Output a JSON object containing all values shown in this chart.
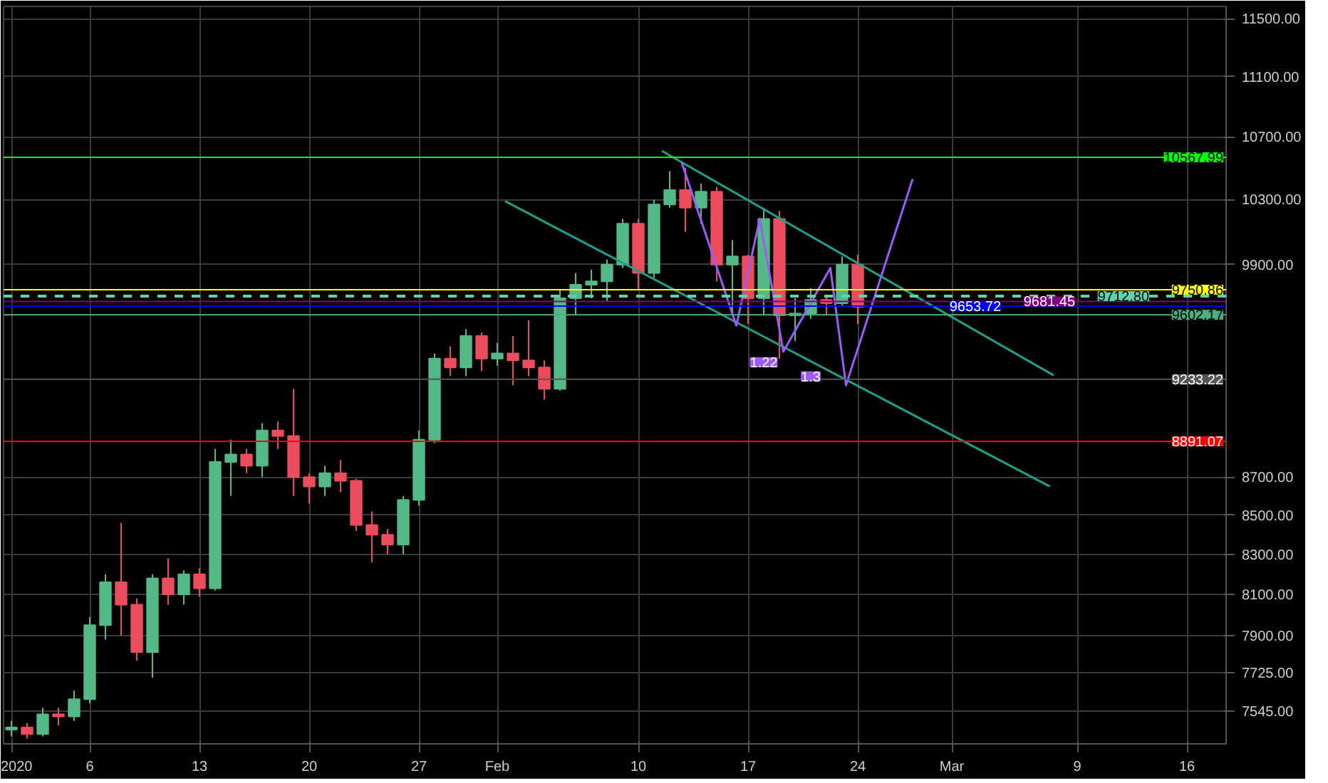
{
  "chart_data": {
    "type": "candlestick",
    "log": "y",
    "grid": true,
    "x": [
      "2020-01-01",
      "2020-01-02",
      "2020-01-03",
      "2020-01-04",
      "2020-01-05",
      "2020-01-06",
      "2020-01-07",
      "2020-01-08",
      "2020-01-09",
      "2020-01-10",
      "2020-01-11",
      "2020-01-12",
      "2020-01-13",
      "2020-01-14",
      "2020-01-15",
      "2020-01-16",
      "2020-01-17",
      "2020-01-18",
      "2020-01-19",
      "2020-01-20",
      "2020-01-21",
      "2020-01-22",
      "2020-01-23",
      "2020-01-24",
      "2020-01-25",
      "2020-01-26",
      "2020-01-27",
      "2020-01-28",
      "2020-01-29",
      "2020-01-30",
      "2020-01-31",
      "2020-02-01",
      "2020-02-02",
      "2020-02-03",
      "2020-02-04",
      "2020-02-05",
      "2020-02-06",
      "2020-02-07",
      "2020-02-08",
      "2020-02-09",
      "2020-02-10",
      "2020-02-11",
      "2020-02-12",
      "2020-02-13",
      "2020-02-14",
      "2020-02-15",
      "2020-02-16",
      "2020-02-17",
      "2020-02-18",
      "2020-02-19",
      "2020-02-20",
      "2020-02-21",
      "2020-02-22",
      "2020-02-23",
      "2020-02-24"
    ],
    "ohlc": [
      [
        7460,
        7500,
        7430,
        7470
      ],
      [
        7470,
        7490,
        7420,
        7440
      ],
      [
        7440,
        7560,
        7430,
        7530
      ],
      [
        7530,
        7560,
        7480,
        7520
      ],
      [
        7520,
        7640,
        7500,
        7600
      ],
      [
        7600,
        7990,
        7580,
        7950
      ],
      [
        7950,
        8200,
        7880,
        8160
      ],
      [
        8160,
        8460,
        7900,
        8050
      ],
      [
        8050,
        8080,
        7780,
        7820
      ],
      [
        7820,
        8200,
        7700,
        8180
      ],
      [
        8180,
        8280,
        8050,
        8100
      ],
      [
        8100,
        8220,
        8050,
        8200
      ],
      [
        8200,
        8230,
        8090,
        8130
      ],
      [
        8130,
        8850,
        8120,
        8780
      ],
      [
        8780,
        8900,
        8600,
        8820
      ],
      [
        8820,
        8850,
        8720,
        8760
      ],
      [
        8760,
        8990,
        8700,
        8950
      ],
      [
        8950,
        9000,
        8850,
        8920
      ],
      [
        8920,
        9180,
        8600,
        8700
      ],
      [
        8700,
        8720,
        8560,
        8650
      ],
      [
        8650,
        8760,
        8600,
        8720
      ],
      [
        8720,
        8790,
        8620,
        8680
      ],
      [
        8680,
        8690,
        8420,
        8450
      ],
      [
        8450,
        8520,
        8260,
        8400
      ],
      [
        8400,
        8430,
        8300,
        8350
      ],
      [
        8350,
        8600,
        8300,
        8580
      ],
      [
        8580,
        8950,
        8550,
        8900
      ],
      [
        8900,
        9380,
        8880,
        9350
      ],
      [
        9350,
        9420,
        9250,
        9300
      ],
      [
        9300,
        9520,
        9250,
        9480
      ],
      [
        9480,
        9500,
        9280,
        9350
      ],
      [
        9350,
        9440,
        9310,
        9380
      ],
      [
        9380,
        9480,
        9200,
        9340
      ],
      [
        9340,
        9570,
        9250,
        9300
      ],
      [
        9300,
        9340,
        9120,
        9180
      ],
      [
        9180,
        9750,
        9170,
        9700
      ],
      [
        9700,
        9850,
        9600,
        9780
      ],
      [
        9780,
        9870,
        9700,
        9800
      ],
      [
        9800,
        9930,
        9680,
        9900
      ],
      [
        9900,
        10180,
        9880,
        10150
      ],
      [
        10150,
        10180,
        9750,
        9850
      ],
      [
        9850,
        10300,
        9820,
        10270
      ],
      [
        10270,
        10480,
        10250,
        10360
      ],
      [
        10360,
        10500,
        10100,
        10250
      ],
      [
        10250,
        10400,
        10150,
        10350
      ],
      [
        10350,
        10380,
        9800,
        9900
      ],
      [
        9900,
        10050,
        9600,
        9950
      ],
      [
        9950,
        9960,
        9550,
        9700
      ],
      [
        9700,
        10250,
        9600,
        10180
      ],
      [
        10180,
        10230,
        9350,
        9600
      ],
      [
        9600,
        9700,
        9450,
        9610
      ],
      [
        9610,
        9760,
        9580,
        9690
      ],
      [
        9690,
        9720,
        9600,
        9670
      ],
      [
        9670,
        9950,
        9650,
        9900
      ],
      [
        9900,
        9960,
        9550,
        9650
      ]
    ],
    "series": [
      {
        "type": "line",
        "color": "#1f9e8a",
        "x": [
          "2020-02-11T12:00",
          "2020-03-07T12:00"
        ],
        "values": [
          10610,
          9255
        ]
      },
      {
        "type": "line",
        "color": "#1f9e8a",
        "x": [
          "2020-02-01T12:00",
          "2020-03-07T06:00"
        ],
        "values": [
          10290,
          8650
        ]
      },
      {
        "type": "line",
        "color": "#9b5cf6",
        "x": [
          "2020-02-12T18:00",
          "2020-02-16T06:00",
          "2020-02-17T18:00",
          "2020-02-19T06:00",
          "2020-02-22T06:00",
          "2020-02-23T06:00",
          "2020-02-27T12:00"
        ],
        "values": [
          10540,
          9540,
          10180,
          9390,
          9880,
          9200,
          10430
        ]
      }
    ],
    "xlim": [
      "2019-12-31T12:00",
      "2020-03-18T12:00"
    ],
    "xticks": [
      {
        "value": "2020-01-01",
        "label": "2020"
      },
      {
        "value": "2020-01-06",
        "label": "6"
      },
      {
        "value": "2020-01-13",
        "label": "13"
      },
      {
        "value": "2020-01-20",
        "label": "20"
      },
      {
        "value": "2020-01-27",
        "label": "27"
      },
      {
        "value": "2020-02-01",
        "label": "Feb"
      },
      {
        "value": "2020-02-10",
        "label": "10"
      },
      {
        "value": "2020-02-17",
        "label": "17"
      },
      {
        "value": "2020-02-24",
        "label": "24"
      },
      {
        "value": "2020-03-01",
        "label": "Mar"
      },
      {
        "value": "2020-03-09",
        "label": "9"
      },
      {
        "value": "2020-03-16",
        "label": "16"
      }
    ],
    "ylim": [
      7396,
      11585
    ],
    "yticks": [
      {
        "value": 7545,
        "label": "7545.00"
      },
      {
        "value": 7725,
        "label": "7725.00"
      },
      {
        "value": 7900,
        "label": "7900.00"
      },
      {
        "value": 8100,
        "label": "8100.00"
      },
      {
        "value": 8300,
        "label": "8300.00"
      },
      {
        "value": 8500,
        "label": "8500.00"
      },
      {
        "value": 8700,
        "label": "8700.00"
      },
      {
        "value": 9900,
        "label": "9900.00"
      },
      {
        "value": 10300,
        "label": "10300.00"
      },
      {
        "value": 10700,
        "label": "10700.00"
      },
      {
        "value": 11100,
        "label": "11100.00"
      },
      {
        "value": 11500,
        "label": "11500.00"
      }
    ],
    "ref_lines": [
      {
        "axis": "y",
        "value": 10567.99,
        "label": "10567.99",
        "color": "#00ff00"
      },
      {
        "axis": "y",
        "value": 9750.86,
        "label": "9750.86",
        "color": "#ffff00"
      },
      {
        "axis": "y",
        "value": 9712.8,
        "label": "9712.80",
        "color": "#5fd3b0",
        "line_style": "dashed"
      },
      {
        "axis": "y",
        "value": 9681.45,
        "label": "9681.45",
        "color": "#800080"
      },
      {
        "axis": "y",
        "value": 9653.72,
        "label": "9653.72",
        "color": "#0000ff"
      },
      {
        "axis": "y",
        "value": 9602.17,
        "label": "9602.17",
        "color": "#4caf82"
      },
      {
        "axis": "y",
        "value": 9233.22,
        "label": "9233.22",
        "color": "#555555"
      },
      {
        "axis": "y",
        "value": 8891.07,
        "label": "8891.07",
        "color": "#ff0000"
      }
    ],
    "annotations": [
      {
        "text": "1.22",
        "x": "2020-02-18",
        "y": 9330
      },
      {
        "text": "1.3",
        "x": "2020-02-21",
        "y": 9250
      }
    ]
  }
}
